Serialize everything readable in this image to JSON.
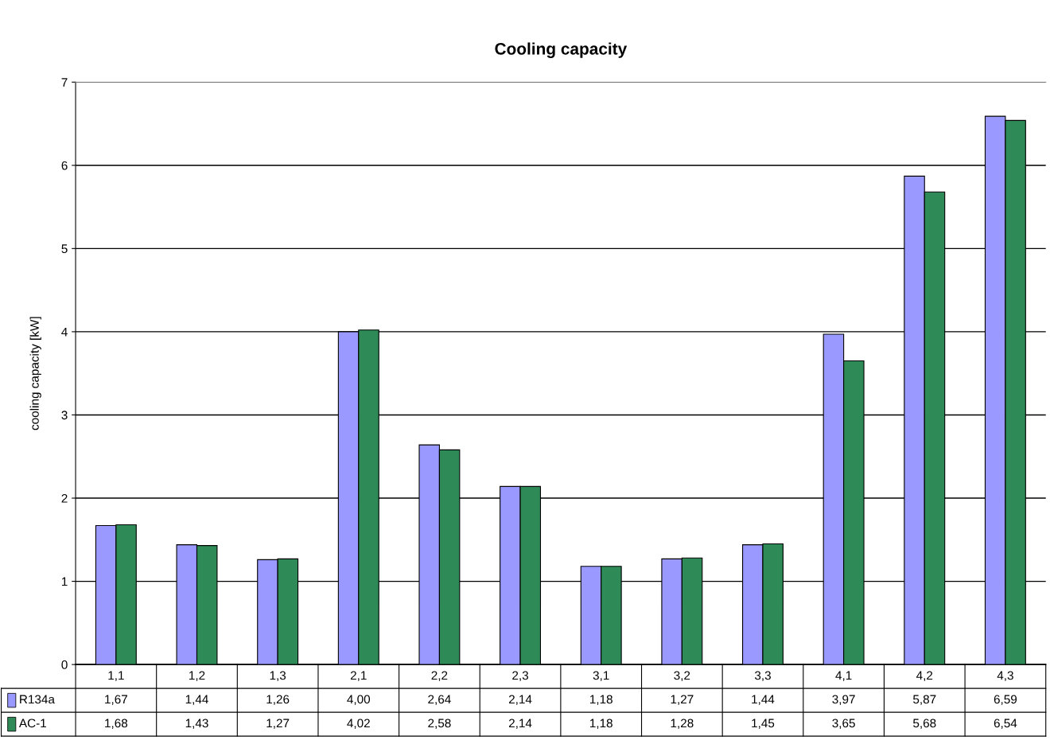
{
  "chart_data": {
    "type": "bar",
    "title": "Cooling capacity",
    "ylabel": "cooling capacity [kW]",
    "categories": [
      "1,1",
      "1,2",
      "1,3",
      "2,1",
      "2,2",
      "2,3",
      "3,1",
      "3,2",
      "3,3",
      "4,1",
      "4,2",
      "4,3"
    ],
    "series": [
      {
        "name": "R134a",
        "color": "#9999ff",
        "values": [
          1.67,
          1.44,
          1.26,
          4.0,
          2.64,
          2.14,
          1.18,
          1.27,
          1.44,
          3.97,
          5.87,
          6.59
        ],
        "value_labels": [
          "1,67",
          "1,44",
          "1,26",
          "4,00",
          "2,64",
          "2,14",
          "1,18",
          "1,27",
          "1,44",
          "3,97",
          "5,87",
          "6,59"
        ]
      },
      {
        "name": "AC-1",
        "color": "#2e8b57",
        "values": [
          1.68,
          1.43,
          1.27,
          4.02,
          2.58,
          2.14,
          1.18,
          1.28,
          1.45,
          3.65,
          5.68,
          6.54
        ],
        "value_labels": [
          "1,68",
          "1,43",
          "1,27",
          "4,02",
          "2,58",
          "2,14",
          "1,18",
          "1,28",
          "1,45",
          "3,65",
          "5,68",
          "6,54"
        ]
      }
    ],
    "ylim": [
      0,
      7
    ],
    "yticks": [
      0,
      1,
      2,
      3,
      4,
      5,
      6,
      7
    ],
    "grid": "y",
    "legend": "bottom left"
  }
}
